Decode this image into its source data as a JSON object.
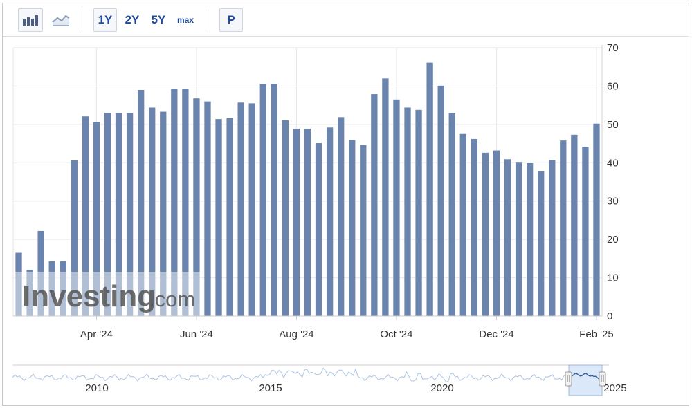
{
  "toolbar": {
    "bar_chart_icon": "bar-chart-icon",
    "line_chart_icon": "line-chart-icon",
    "range_1y": "1Y",
    "range_2y": "2Y",
    "range_5y": "5Y",
    "range_max": "max",
    "period_button": "P",
    "accent_color": "#1e4a9a"
  },
  "watermark": {
    "brand": "Investing",
    "suffix": ".com"
  },
  "chart_data": {
    "type": "bar",
    "bar_color": "#6a84ad",
    "ylim": [
      0,
      70
    ],
    "yticks": [
      0,
      10,
      20,
      30,
      40,
      50,
      60,
      70
    ],
    "xtick_labels": [
      "Apr '24",
      "Jun '24",
      "Aug '24",
      "Oct '24",
      "Dec '24",
      "Feb '25"
    ],
    "xtick_positions": [
      7.5,
      16.5,
      25.5,
      34.5,
      43.5,
      52.5
    ],
    "values": [
      16.5,
      12,
      22.2,
      14.3,
      14.3,
      40.6,
      52.1,
      50.6,
      53,
      53,
      53,
      59,
      54.4,
      53.3,
      59.3,
      59.3,
      56.8,
      56,
      51.4,
      51.6,
      55.7,
      55.5,
      60.6,
      60.6,
      51.1,
      48.9,
      48.9,
      45.1,
      49.2,
      51.9,
      45.9,
      44.6,
      57.9,
      62,
      56.5,
      54.4,
      53.8,
      66.1,
      60.1,
      53,
      47.5,
      46.2,
      42.6,
      43.2,
      40.9,
      40.2,
      40,
      37.7,
      40.7,
      45.8,
      47.3,
      44.2,
      50.2
    ],
    "grid": true
  },
  "navigator": {
    "year_labels": [
      "2010",
      "2015",
      "2020",
      "2025"
    ],
    "color": "#8fb4e0"
  }
}
